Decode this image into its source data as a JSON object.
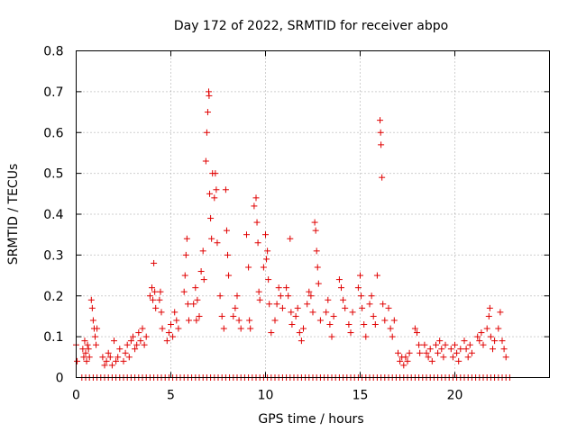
{
  "chart_data": {
    "type": "scatter",
    "title": "Day 172 of 2022, SRMTID for receiver abpo",
    "xlabel": "GPS time / hours",
    "ylabel": "SRMTID / TECUs",
    "xlim": [
      0,
      25
    ],
    "ylim": [
      0,
      0.8
    ],
    "x_ticks": [
      0,
      5,
      10,
      15,
      20
    ],
    "x_tick_labels": [
      "0",
      "5",
      "10",
      "15",
      "20"
    ],
    "y_ticks": [
      0,
      0.1,
      0.2,
      0.3,
      0.4,
      0.5,
      0.6,
      0.7,
      0.8
    ],
    "y_tick_labels": [
      "0",
      "0.1",
      "0.2",
      "0.3",
      "0.4",
      "0.5",
      "0.6",
      "0.7",
      "0.8"
    ],
    "grid": true,
    "marker": "+",
    "marker_color": "#e00000",
    "series": [
      {
        "name": "SRMTID",
        "points": [
          [
            0.0,
            0.08
          ],
          [
            0.05,
            0.04
          ],
          [
            0.35,
            0.07
          ],
          [
            0.4,
            0.05
          ],
          [
            0.45,
            0.09
          ],
          [
            0.5,
            0.06
          ],
          [
            0.55,
            0.04
          ],
          [
            0.6,
            0.08
          ],
          [
            0.65,
            0.07
          ],
          [
            0.7,
            0.05
          ],
          [
            0.8,
            0.19
          ],
          [
            0.85,
            0.17
          ],
          [
            0.9,
            0.14
          ],
          [
            0.95,
            0.12
          ],
          [
            1.0,
            0.1
          ],
          [
            1.05,
            0.08
          ],
          [
            1.1,
            0.12
          ],
          [
            1.4,
            0.05
          ],
          [
            1.5,
            0.03
          ],
          [
            1.6,
            0.04
          ],
          [
            1.7,
            0.06
          ],
          [
            1.8,
            0.05
          ],
          [
            1.9,
            0.03
          ],
          [
            2.0,
            0.09
          ],
          [
            2.1,
            0.04
          ],
          [
            2.2,
            0.05
          ],
          [
            2.3,
            0.07
          ],
          [
            2.5,
            0.04
          ],
          [
            2.6,
            0.06
          ],
          [
            2.7,
            0.08
          ],
          [
            2.8,
            0.05
          ],
          [
            2.9,
            0.09
          ],
          [
            3.0,
            0.1
          ],
          [
            3.1,
            0.07
          ],
          [
            3.2,
            0.08
          ],
          [
            3.3,
            0.11
          ],
          [
            3.4,
            0.09
          ],
          [
            3.5,
            0.12
          ],
          [
            3.6,
            0.08
          ],
          [
            3.7,
            0.1
          ],
          [
            3.9,
            0.2
          ],
          [
            4.0,
            0.22
          ],
          [
            4.05,
            0.19
          ],
          [
            4.1,
            0.28
          ],
          [
            4.15,
            0.21
          ],
          [
            4.2,
            0.17
          ],
          [
            4.4,
            0.19
          ],
          [
            4.45,
            0.21
          ],
          [
            4.5,
            0.16
          ],
          [
            4.55,
            0.12
          ],
          [
            4.8,
            0.09
          ],
          [
            4.9,
            0.11
          ],
          [
            5.0,
            0.13
          ],
          [
            5.1,
            0.1
          ],
          [
            5.2,
            0.16
          ],
          [
            5.3,
            0.14
          ],
          [
            5.4,
            0.12
          ],
          [
            5.7,
            0.21
          ],
          [
            5.75,
            0.25
          ],
          [
            5.8,
            0.3
          ],
          [
            5.85,
            0.34
          ],
          [
            5.9,
            0.18
          ],
          [
            5.95,
            0.14
          ],
          [
            6.2,
            0.18
          ],
          [
            6.3,
            0.22
          ],
          [
            6.35,
            0.14
          ],
          [
            6.4,
            0.19
          ],
          [
            6.5,
            0.15
          ],
          [
            6.6,
            0.26
          ],
          [
            6.7,
            0.31
          ],
          [
            6.75,
            0.24
          ],
          [
            6.85,
            0.53
          ],
          [
            6.9,
            0.6
          ],
          [
            6.95,
            0.65
          ],
          [
            7.0,
            0.7
          ],
          [
            7.02,
            0.69
          ],
          [
            7.05,
            0.45
          ],
          [
            7.1,
            0.39
          ],
          [
            7.15,
            0.34
          ],
          [
            7.2,
            0.5
          ],
          [
            7.3,
            0.44
          ],
          [
            7.35,
            0.5
          ],
          [
            7.4,
            0.46
          ],
          [
            7.45,
            0.33
          ],
          [
            7.6,
            0.2
          ],
          [
            7.7,
            0.15
          ],
          [
            7.8,
            0.12
          ],
          [
            7.9,
            0.46
          ],
          [
            7.95,
            0.36
          ],
          [
            8.0,
            0.3
          ],
          [
            8.05,
            0.25
          ],
          [
            8.3,
            0.15
          ],
          [
            8.4,
            0.17
          ],
          [
            8.5,
            0.2
          ],
          [
            8.6,
            0.14
          ],
          [
            8.7,
            0.12
          ],
          [
            9.0,
            0.35
          ],
          [
            9.1,
            0.27
          ],
          [
            9.15,
            0.14
          ],
          [
            9.2,
            0.12
          ],
          [
            9.4,
            0.42
          ],
          [
            9.5,
            0.44
          ],
          [
            9.55,
            0.38
          ],
          [
            9.6,
            0.33
          ],
          [
            9.65,
            0.21
          ],
          [
            9.7,
            0.19
          ],
          [
            9.9,
            0.27
          ],
          [
            10.0,
            0.35
          ],
          [
            10.05,
            0.29
          ],
          [
            10.1,
            0.31
          ],
          [
            10.15,
            0.24
          ],
          [
            10.2,
            0.18
          ],
          [
            10.3,
            0.11
          ],
          [
            10.5,
            0.14
          ],
          [
            10.6,
            0.18
          ],
          [
            10.7,
            0.22
          ],
          [
            10.8,
            0.2
          ],
          [
            10.9,
            0.17
          ],
          [
            11.1,
            0.22
          ],
          [
            11.2,
            0.2
          ],
          [
            11.3,
            0.34
          ],
          [
            11.35,
            0.16
          ],
          [
            11.4,
            0.13
          ],
          [
            11.6,
            0.15
          ],
          [
            11.7,
            0.17
          ],
          [
            11.8,
            0.11
          ],
          [
            11.9,
            0.09
          ],
          [
            12.0,
            0.12
          ],
          [
            12.2,
            0.18
          ],
          [
            12.3,
            0.21
          ],
          [
            12.4,
            0.2
          ],
          [
            12.5,
            0.16
          ],
          [
            12.6,
            0.38
          ],
          [
            12.65,
            0.36
          ],
          [
            12.7,
            0.31
          ],
          [
            12.75,
            0.27
          ],
          [
            12.8,
            0.23
          ],
          [
            12.9,
            0.14
          ],
          [
            13.2,
            0.16
          ],
          [
            13.3,
            0.19
          ],
          [
            13.4,
            0.13
          ],
          [
            13.5,
            0.1
          ],
          [
            13.6,
            0.15
          ],
          [
            13.9,
            0.24
          ],
          [
            14.0,
            0.22
          ],
          [
            14.1,
            0.19
          ],
          [
            14.2,
            0.17
          ],
          [
            14.4,
            0.13
          ],
          [
            14.5,
            0.11
          ],
          [
            14.6,
            0.16
          ],
          [
            14.9,
            0.22
          ],
          [
            15.0,
            0.25
          ],
          [
            15.05,
            0.2
          ],
          [
            15.1,
            0.17
          ],
          [
            15.2,
            0.13
          ],
          [
            15.3,
            0.1
          ],
          [
            15.5,
            0.18
          ],
          [
            15.6,
            0.2
          ],
          [
            15.7,
            0.15
          ],
          [
            15.8,
            0.13
          ],
          [
            15.9,
            0.25
          ],
          [
            16.05,
            0.63
          ],
          [
            16.08,
            0.6
          ],
          [
            16.1,
            0.57
          ],
          [
            16.15,
            0.49
          ],
          [
            16.2,
            0.18
          ],
          [
            16.3,
            0.14
          ],
          [
            16.5,
            0.17
          ],
          [
            16.6,
            0.12
          ],
          [
            16.7,
            0.1
          ],
          [
            16.8,
            0.14
          ],
          [
            17.0,
            0.06
          ],
          [
            17.1,
            0.04
          ],
          [
            17.2,
            0.05
          ],
          [
            17.3,
            0.03
          ],
          [
            17.4,
            0.05
          ],
          [
            17.5,
            0.04
          ],
          [
            17.6,
            0.06
          ],
          [
            17.9,
            0.12
          ],
          [
            18.0,
            0.11
          ],
          [
            18.1,
            0.08
          ],
          [
            18.15,
            0.06
          ],
          [
            18.4,
            0.08
          ],
          [
            18.5,
            0.06
          ],
          [
            18.6,
            0.05
          ],
          [
            18.7,
            0.07
          ],
          [
            18.8,
            0.04
          ],
          [
            19.0,
            0.08
          ],
          [
            19.1,
            0.06
          ],
          [
            19.2,
            0.09
          ],
          [
            19.3,
            0.07
          ],
          [
            19.4,
            0.05
          ],
          [
            19.5,
            0.08
          ],
          [
            19.8,
            0.07
          ],
          [
            19.9,
            0.05
          ],
          [
            20.0,
            0.08
          ],
          [
            20.1,
            0.06
          ],
          [
            20.2,
            0.04
          ],
          [
            20.3,
            0.07
          ],
          [
            20.5,
            0.09
          ],
          [
            20.6,
            0.07
          ],
          [
            20.7,
            0.05
          ],
          [
            20.8,
            0.08
          ],
          [
            20.9,
            0.06
          ],
          [
            21.2,
            0.1
          ],
          [
            21.3,
            0.09
          ],
          [
            21.4,
            0.11
          ],
          [
            21.5,
            0.08
          ],
          [
            21.7,
            0.12
          ],
          [
            21.8,
            0.15
          ],
          [
            21.85,
            0.17
          ],
          [
            21.9,
            0.1
          ],
          [
            22.0,
            0.07
          ],
          [
            22.1,
            0.09
          ],
          [
            22.3,
            0.12
          ],
          [
            22.4,
            0.16
          ],
          [
            22.5,
            0.09
          ],
          [
            22.6,
            0.07
          ],
          [
            22.7,
            0.05
          ]
        ]
      }
    ],
    "zero_baseline_points": {
      "y": 0,
      "x": [
        0.3,
        0.5,
        0.7,
        0.9,
        1.1,
        1.3,
        1.5,
        1.7,
        1.9,
        2.1,
        2.3,
        2.5,
        2.7,
        2.9,
        3.1,
        3.3,
        3.5,
        3.7,
        3.9,
        4.1,
        4.3,
        4.5,
        4.7,
        4.9,
        5.1,
        5.3,
        5.5,
        5.7,
        5.9,
        6.1,
        6.3,
        6.5,
        6.7,
        6.9,
        7.1,
        7.3,
        7.5,
        7.7,
        7.9,
        8.1,
        8.3,
        8.5,
        8.7,
        8.9,
        9.1,
        9.3,
        9.5,
        9.7,
        9.9,
        10.1,
        10.3,
        10.5,
        10.7,
        10.9,
        11.1,
        11.3,
        11.5,
        11.7,
        11.9,
        12.1,
        12.3,
        12.5,
        12.7,
        12.9,
        13.1,
        13.3,
        13.5,
        13.7,
        13.9,
        14.1,
        14.3,
        14.5,
        14.7,
        14.9,
        15.1,
        15.3,
        15.5,
        15.7,
        15.9,
        16.1,
        16.3,
        16.5,
        16.7,
        16.9,
        17.1,
        17.3,
        17.5,
        17.7,
        17.9,
        18.1,
        18.3,
        18.5,
        18.7,
        18.9,
        19.1,
        19.3,
        19.5,
        19.7,
        19.9,
        20.1,
        20.3,
        20.5,
        20.7,
        20.9,
        21.1,
        21.3,
        21.5,
        21.7,
        21.9,
        22.1,
        22.3,
        22.5,
        22.7,
        22.9
      ]
    }
  }
}
